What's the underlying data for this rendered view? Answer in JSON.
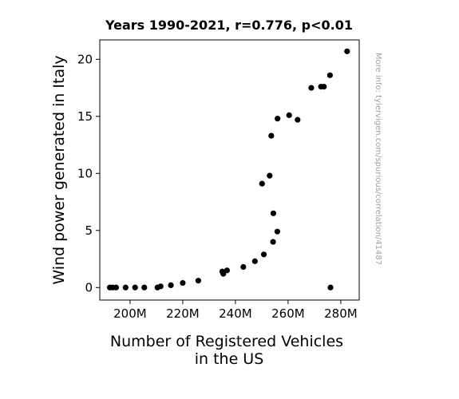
{
  "chart_data": {
    "type": "scatter",
    "title": "Years 1990-2021, r=0.776, p<0.01",
    "xlabel_lines": [
      "Number of Registered Vehicles",
      "in the US"
    ],
    "ylabel": "Wind power generated in Italy",
    "side_note": "More info: tylervigen.com/spurious/correlation/41487",
    "xlim": [
      188.5,
      287
    ],
    "ylim": [
      -1.1,
      21.7
    ],
    "x_ticks": [
      200,
      220,
      240,
      260,
      280
    ],
    "x_tick_labels": [
      "200M",
      "220M",
      "240M",
      "260M",
      "280M"
    ],
    "y_ticks": [
      0,
      5,
      10,
      15,
      20
    ],
    "y_tick_labels": [
      "0",
      "5",
      "10",
      "15",
      "20"
    ],
    "grid": false,
    "x_unit": "millions of vehicles",
    "marker_color": "#000000",
    "points": [
      {
        "x": 192.3,
        "y": 0.0
      },
      {
        "x": 193.4,
        "y": 0.0
      },
      {
        "x": 194.7,
        "y": 0.0
      },
      {
        "x": 198.3,
        "y": 0.0
      },
      {
        "x": 201.9,
        "y": 0.0
      },
      {
        "x": 205.4,
        "y": 0.0
      },
      {
        "x": 210.4,
        "y": 0.0
      },
      {
        "x": 211.6,
        "y": 0.1
      },
      {
        "x": 215.5,
        "y": 0.2
      },
      {
        "x": 220.0,
        "y": 0.4
      },
      {
        "x": 225.9,
        "y": 0.6
      },
      {
        "x": 235.0,
        "y": 1.4
      },
      {
        "x": 235.4,
        "y": 1.2
      },
      {
        "x": 236.8,
        "y": 1.5
      },
      {
        "x": 243.0,
        "y": 1.8
      },
      {
        "x": 247.4,
        "y": 2.3
      },
      {
        "x": 250.8,
        "y": 2.9
      },
      {
        "x": 254.3,
        "y": 4.0
      },
      {
        "x": 255.9,
        "y": 4.9
      },
      {
        "x": 254.4,
        "y": 6.5
      },
      {
        "x": 253.0,
        "y": 9.8
      },
      {
        "x": 250.1,
        "y": 9.1
      },
      {
        "x": 253.6,
        "y": 13.3
      },
      {
        "x": 256.0,
        "y": 14.8
      },
      {
        "x": 260.4,
        "y": 15.1
      },
      {
        "x": 263.6,
        "y": 14.7
      },
      {
        "x": 268.8,
        "y": 17.5
      },
      {
        "x": 272.5,
        "y": 17.6
      },
      {
        "x": 273.6,
        "y": 17.6
      },
      {
        "x": 275.9,
        "y": 18.6
      },
      {
        "x": 282.4,
        "y": 20.7
      },
      {
        "x": 276.1,
        "y": 0.0
      }
    ]
  }
}
